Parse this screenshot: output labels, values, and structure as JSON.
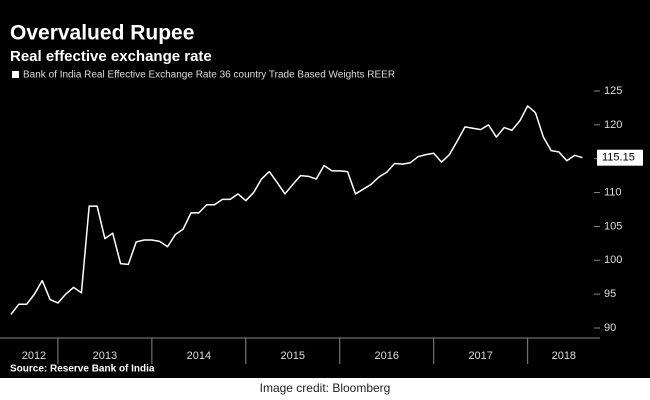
{
  "chart_data": {
    "type": "line",
    "title": "Overvalued Rupee",
    "subtitle": "Real effective exchange rate",
    "source": "Source: Reserve Bank of India",
    "credit": "Image credit: Bloomberg",
    "xlim": [
      2012.49,
      2018.77
    ],
    "xticks": [
      2012,
      2013,
      2014,
      2015,
      2016,
      2017,
      2018
    ],
    "ylim": [
      90,
      125
    ],
    "yticks": [
      90,
      95,
      100,
      105,
      110,
      115,
      120,
      125
    ],
    "value_label": 115.15,
    "series": [
      {
        "name": "Bank of India Real Effective Exchange Rate 36 country Trade Based Weights REER",
        "color": "#ffffff",
        "x": [
          2012.5,
          2012.583,
          2012.667,
          2012.75,
          2012.833,
          2012.917,
          2013,
          2013.083,
          2013.167,
          2013.25,
          2013.333,
          2013.417,
          2013.5,
          2013.583,
          2013.667,
          2013.75,
          2013.833,
          2013.917,
          2014,
          2014.083,
          2014.167,
          2014.25,
          2014.333,
          2014.417,
          2014.5,
          2014.583,
          2014.667,
          2014.75,
          2014.833,
          2014.917,
          2015,
          2015.083,
          2015.167,
          2015.25,
          2015.333,
          2015.417,
          2015.5,
          2015.583,
          2015.667,
          2015.75,
          2015.833,
          2015.917,
          2016,
          2016.083,
          2016.167,
          2016.25,
          2016.333,
          2016.417,
          2016.5,
          2016.583,
          2016.667,
          2016.75,
          2016.833,
          2016.917,
          2017,
          2017.083,
          2017.167,
          2017.25,
          2017.333,
          2017.417,
          2017.5,
          2017.583,
          2017.667,
          2017.75,
          2017.833,
          2017.917,
          2018,
          2018.083,
          2018.167,
          2018.25,
          2018.333,
          2018.417,
          2018.5,
          2018.583
        ],
        "values": [
          92,
          93.5,
          93.5,
          95,
          97,
          94.2,
          93.7,
          95,
          96,
          95.2,
          108,
          108,
          103.2,
          104,
          99.5,
          99.4,
          102.7,
          103,
          103,
          102.8,
          102,
          103.8,
          104.6,
          107,
          107,
          108.2,
          108.2,
          109,
          109,
          109.8,
          108.8,
          110,
          112,
          113.1,
          111.5,
          109.8,
          111.2,
          112.5,
          112.4,
          112,
          114,
          113.2,
          113.2,
          113.1,
          109.8,
          110.5,
          111.2,
          112.3,
          113,
          114.3,
          114.2,
          114.4,
          115.3,
          115.6,
          115.8,
          114.5,
          115.6,
          117.6,
          119.7,
          119.5,
          119.3,
          120,
          118.2,
          119.6,
          119.2,
          120.6,
          122.8,
          121.8,
          118.2,
          116.2,
          116,
          114.7,
          115.5,
          115.15
        ]
      }
    ]
  }
}
